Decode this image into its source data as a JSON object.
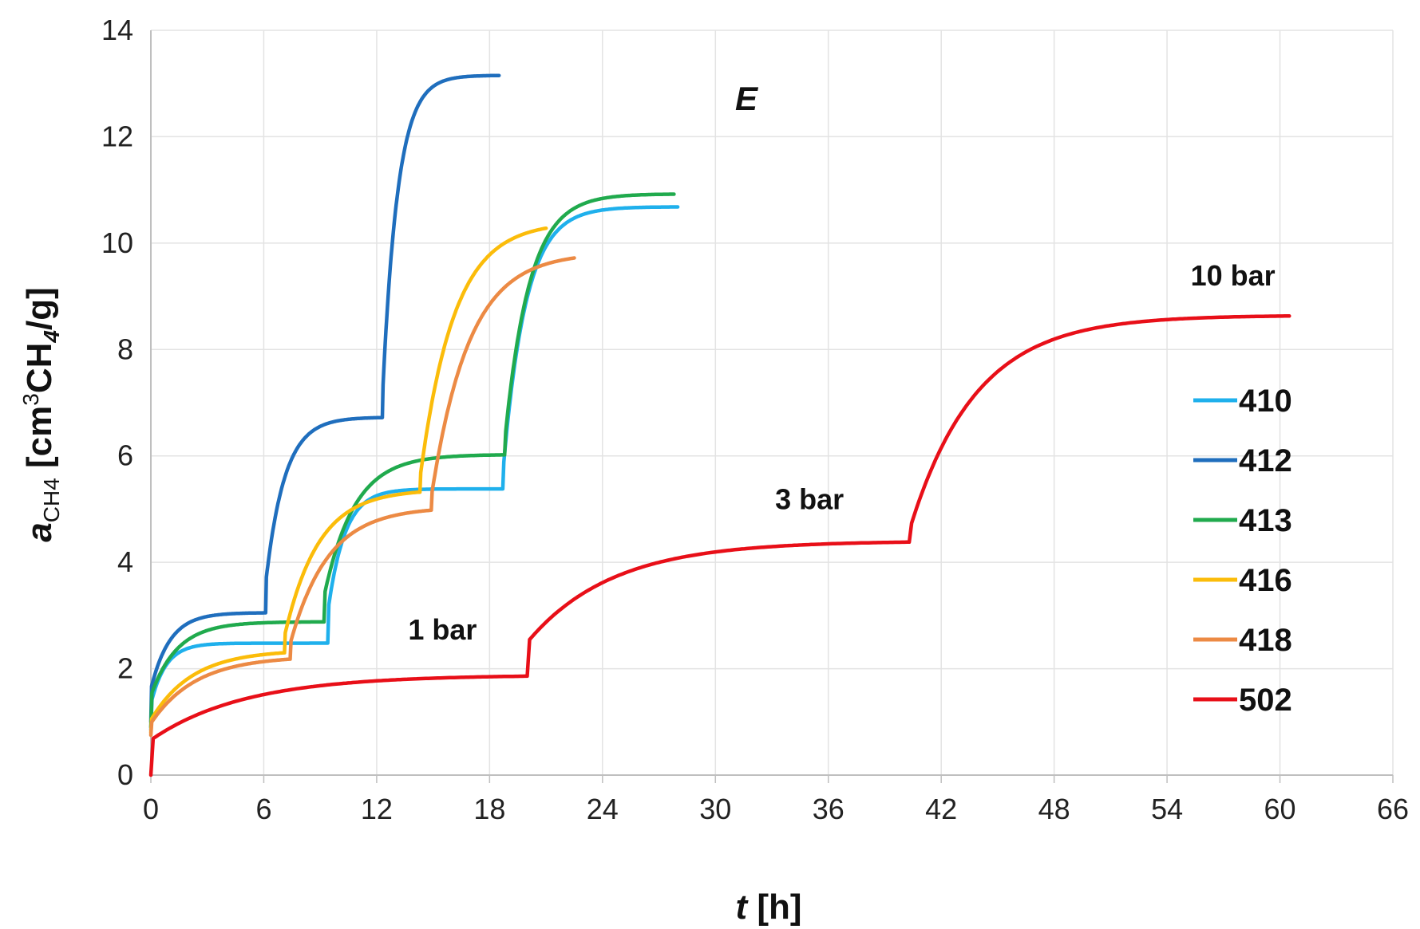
{
  "chart_data": {
    "type": "line",
    "title": "",
    "panel_label": "E",
    "xlabel": {
      "italic": "t",
      "rest": " [h]"
    },
    "ylabel": {
      "a": "a",
      "sub": "CH4",
      "pre": " [cm",
      "sup": "3",
      "mid": "CH",
      "sub2": "4",
      "post": "/g]"
    },
    "xlim": [
      0,
      66
    ],
    "ylim": [
      0,
      14
    ],
    "xticks": [
      "0",
      "6",
      "12",
      "18",
      "24",
      "30",
      "36",
      "42",
      "48",
      "54",
      "60",
      "66"
    ],
    "yticks": [
      "0",
      "2",
      "4",
      "6",
      "8",
      "10",
      "12",
      "14"
    ],
    "grid": true,
    "legend_position": "right",
    "annotations": [
      {
        "text": "1 bar",
        "x": 15.5,
        "y": 2.55
      },
      {
        "text": "3 bar",
        "x": 35,
        "y": 5.0
      },
      {
        "text": "10 bar",
        "x": 57.5,
        "y": 9.2
      }
    ],
    "series": [
      {
        "name": "410",
        "color": "#1fb0ec",
        "steps": [
          {
            "t0": 0,
            "t1": 9.4,
            "a0": 0.85,
            "a1": 2.48,
            "tau": 0.8,
            "init": 0.3
          },
          {
            "t0": 9.4,
            "t1": 18.7,
            "a0": 2.48,
            "a1": 5.38,
            "tau": 0.9,
            "init": 0.2
          },
          {
            "t0": 18.7,
            "t1": 28.0,
            "a0": 5.38,
            "a1": 10.68,
            "tau": 1.2,
            "init": 0.05
          }
        ]
      },
      {
        "name": "412",
        "color": "#1f6ebd",
        "steps": [
          {
            "t0": 0,
            "t1": 6.1,
            "a0": 1.0,
            "a1": 3.05,
            "tau": 1.0,
            "init": 0.3
          },
          {
            "t0": 6.1,
            "t1": 12.3,
            "a0": 3.05,
            "a1": 6.72,
            "tau": 1.0,
            "init": 0.15
          },
          {
            "t0": 12.3,
            "t1": 18.5,
            "a0": 6.72,
            "a1": 13.15,
            "tau": 0.8,
            "init": 0.05
          }
        ]
      },
      {
        "name": "413",
        "color": "#20aa4d",
        "steps": [
          {
            "t0": 0,
            "t1": 9.2,
            "a0": 0.9,
            "a1": 2.88,
            "tau": 1.4,
            "init": 0.3
          },
          {
            "t0": 9.2,
            "t1": 18.8,
            "a0": 2.88,
            "a1": 6.02,
            "tau": 1.6,
            "init": 0.15
          },
          {
            "t0": 18.8,
            "t1": 27.8,
            "a0": 6.02,
            "a1": 10.92,
            "tau": 1.3,
            "init": 0.05
          }
        ]
      },
      {
        "name": "416",
        "color": "#fbbc0a",
        "steps": [
          {
            "t0": 0,
            "t1": 7.1,
            "a0": 0.8,
            "a1": 2.3,
            "tau": 2.2,
            "init": 0.15
          },
          {
            "t0": 7.1,
            "t1": 14.3,
            "a0": 2.3,
            "a1": 5.32,
            "tau": 1.8,
            "init": 0.1
          },
          {
            "t0": 14.3,
            "t1": 21.0,
            "a0": 5.32,
            "a1": 10.28,
            "tau": 1.8,
            "init": 0.05
          }
        ]
      },
      {
        "name": "418",
        "color": "#ec8a44",
        "steps": [
          {
            "t0": 0,
            "t1": 7.4,
            "a0": 0.75,
            "a1": 2.18,
            "tau": 2.4,
            "init": 0.15
          },
          {
            "t0": 7.4,
            "t1": 14.9,
            "a0": 2.18,
            "a1": 4.98,
            "tau": 2.0,
            "init": 0.1
          },
          {
            "t0": 14.9,
            "t1": 22.5,
            "a0": 4.98,
            "a1": 9.72,
            "tau": 2.0,
            "init": 0.05
          }
        ]
      },
      {
        "name": "502",
        "color": "#e80f18",
        "steps": [
          {
            "t0": 0,
            "t1": 20.0,
            "a0": 0.0,
            "a1": 1.86,
            "tau": 5.0,
            "init": 0.35
          },
          {
            "t0": 20.0,
            "t1": 40.3,
            "a0": 1.86,
            "a1": 4.38,
            "tau": 4.5,
            "init": 0.25
          },
          {
            "t0": 40.3,
            "t1": 60.5,
            "a0": 4.38,
            "a1": 8.63,
            "tau": 3.5,
            "init": 0.05
          }
        ]
      }
    ]
  }
}
